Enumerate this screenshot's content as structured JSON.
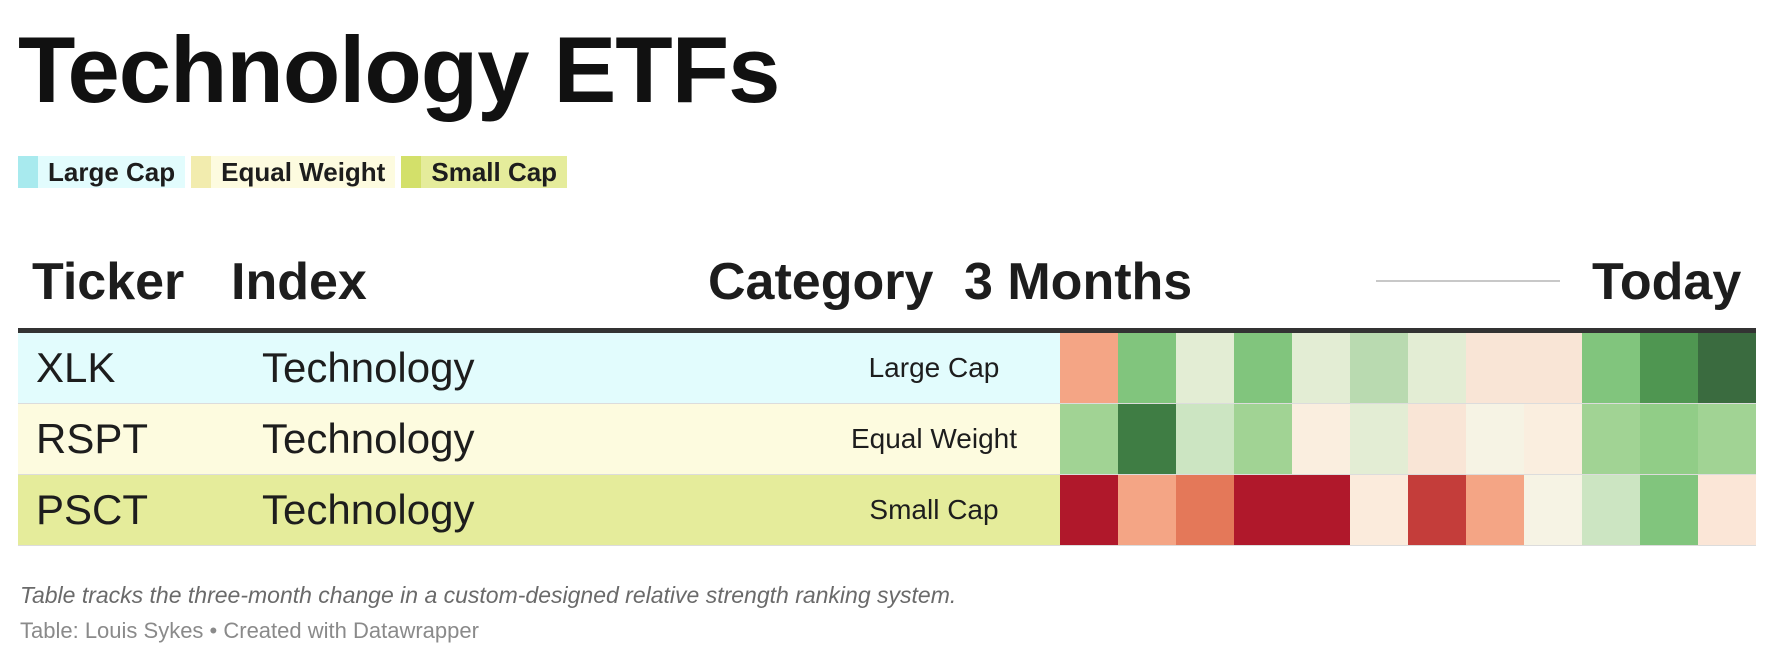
{
  "title": "Technology ETFs",
  "legend": [
    {
      "label": "Large Cap",
      "color": "#a8eaee",
      "bg": "#e2fcfd"
    },
    {
      "label": "Equal Weight",
      "color": "#f2ecae",
      "bg": "#fdfbdf"
    },
    {
      "label": "Small Cap",
      "color": "#d3e06a",
      "bg": "#e5ec9b"
    }
  ],
  "headers": {
    "ticker": "Ticker",
    "index": "Index",
    "category": "Category",
    "start": "3 Months",
    "end": "Today"
  },
  "chart_data": {
    "type": "heatmap",
    "title": "Technology ETFs",
    "columns": [
      "Ticker",
      "Index",
      "Category",
      "3 Months",
      "Today"
    ],
    "heat_columns": 12,
    "colors": {
      "strong_green": "#3a6b3f",
      "green": "#4f9651",
      "light_green": "#81c57d",
      "pale_green": "#e3edd4",
      "pale_red": "#f9e5d6",
      "red": "#f4a585",
      "strong_red": "#b0182b"
    },
    "rows": [
      {
        "ticker": "XLK",
        "index": "Technology",
        "category": "Large Cap",
        "row_color": "#e2fcfd",
        "heat": [
          "#f4a585",
          "#81c57d",
          "#e3edd4",
          "#81c57d",
          "#e3edd4",
          "#b9dab0",
          "#e3edd4",
          "#f9e5d6",
          "#f9e5d6",
          "#81c57d",
          "#4f9651",
          "#3a6b3f"
        ]
      },
      {
        "ticker": "RSPT",
        "index": "Technology",
        "category": "Equal Weight",
        "row_color": "#fdfbdf",
        "heat": [
          "#a1d394",
          "#3f7d44",
          "#cce5c2",
          "#a1d394",
          "#faeedf",
          "#e3edd4",
          "#f9e5d6",
          "#f6f3e4",
          "#faeedf",
          "#a1d394",
          "#91cd87",
          "#a1d394"
        ]
      },
      {
        "ticker": "PSCT",
        "index": "Technology",
        "category": "Small Cap",
        "row_color": "#e5ec9b",
        "heat": [
          "#b0182b",
          "#f4a585",
          "#e47859",
          "#b0182b",
          "#b0182b",
          "#fbebdc",
          "#c43d3a",
          "#f4a585",
          "#f6f3e4",
          "#cce5c2",
          "#81c57d",
          "#fbe6d7"
        ]
      }
    ]
  },
  "footer": {
    "note": "Table tracks the three-month change in a custom-designed relative strength ranking system.",
    "source": "Table: Louis Sykes • Created with Datawrapper"
  }
}
